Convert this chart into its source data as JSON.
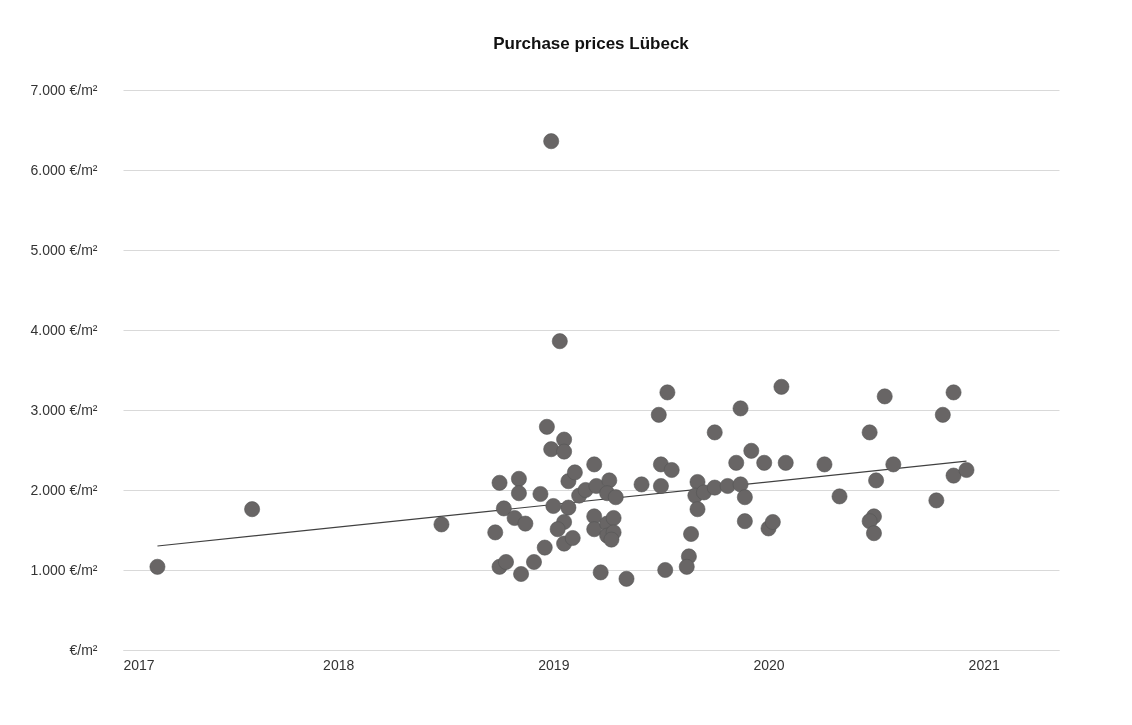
{
  "chart_data": {
    "type": "scatter",
    "title": "Purchase prices Lübeck",
    "grid": "y",
    "xlim": [
      2017,
      2021.35
    ],
    "xticks": [
      2017,
      2018,
      2019,
      2020,
      2021
    ],
    "ylim": [
      0,
      7000
    ],
    "yticks": [
      {
        "value": 0,
        "label": "€/m²"
      },
      {
        "value": 1000,
        "label": "1.000 €/m²"
      },
      {
        "value": 2000,
        "label": "2.000 €/m²"
      },
      {
        "value": 3000,
        "label": "3.000 €/m²"
      },
      {
        "value": 4000,
        "label": "4.000 €/m²"
      },
      {
        "value": 5000,
        "label": "5.000 €/m²"
      },
      {
        "value": 6000,
        "label": "6.000 €/m²"
      },
      {
        "value": 7000,
        "label": "7.000 €/m²"
      }
    ],
    "series": [
      {
        "marker": "circle",
        "color": "#686565",
        "x": [
          2017.16,
          2017.6,
          2018.48,
          2018.75,
          2018.84,
          2018.84,
          2018.77,
          2018.82,
          2018.87,
          2018.73,
          2018.75,
          2018.78,
          2018.85,
          2018.91,
          2018.96,
          2018.94,
          2018.97,
          2018.99,
          2019.05,
          2019.05,
          2019.0,
          2019.07,
          2019.05,
          2019.02,
          2019.05,
          2019.09,
          2019.07,
          2019.1,
          2019.19,
          2019.12,
          2019.15,
          2019.2,
          2019.26,
          2019.25,
          2019.29,
          2019.19,
          2019.19,
          2019.25,
          2019.28,
          2019.25,
          2019.28,
          2019.27,
          2019.22,
          2019.34,
          2019.41,
          2019.5,
          2019.5,
          2019.55,
          2019.49,
          2019.53,
          2019.52,
          2019.64,
          2019.63,
          2019.62,
          2019.75,
          2019.87,
          2020.06,
          2019.92,
          2019.85,
          2019.98,
          2020.08,
          2020.26,
          2019.67,
          2019.66,
          2019.7,
          2019.75,
          2019.81,
          2019.87,
          2019.89,
          2019.67,
          2019.89,
          2020.0,
          2020.02,
          2020.33,
          2020.47,
          2020.54,
          2020.58,
          2020.5,
          2020.49,
          2020.47,
          2020.49,
          2020.78,
          2020.81,
          2020.86,
          2020.86,
          2020.92,
          2018.99,
          2019.03
        ],
        "values": [
          1040,
          1760,
          1570,
          2090,
          2140,
          1960,
          1770,
          1650,
          1580,
          1470,
          1040,
          1100,
          950,
          1100,
          1280,
          1950,
          2790,
          2510,
          2630,
          2480,
          1800,
          1780,
          1600,
          1510,
          1330,
          1400,
          2110,
          2220,
          2320,
          1930,
          2000,
          2050,
          2120,
          1960,
          1910,
          1670,
          1510,
          1580,
          1650,
          1430,
          1470,
          1380,
          970,
          890,
          2070,
          2050,
          2320,
          2250,
          2940,
          3220,
          1000,
          1450,
          1170,
          1040,
          2720,
          3020,
          3290,
          2490,
          2340,
          2340,
          2340,
          2320,
          2100,
          1930,
          1970,
          2030,
          2050,
          2070,
          1910,
          1760,
          1610,
          1520,
          1600,
          1920,
          2720,
          3170,
          2320,
          2120,
          1670,
          1610,
          1460,
          1870,
          2940,
          3220,
          2180,
          2250,
          6360,
          3860
        ]
      },
      {
        "type": "line",
        "color": "#404040",
        "line_style": "solid",
        "x": [
          2017.16,
          2020.92
        ],
        "values": [
          1300,
          2360
        ]
      }
    ]
  }
}
